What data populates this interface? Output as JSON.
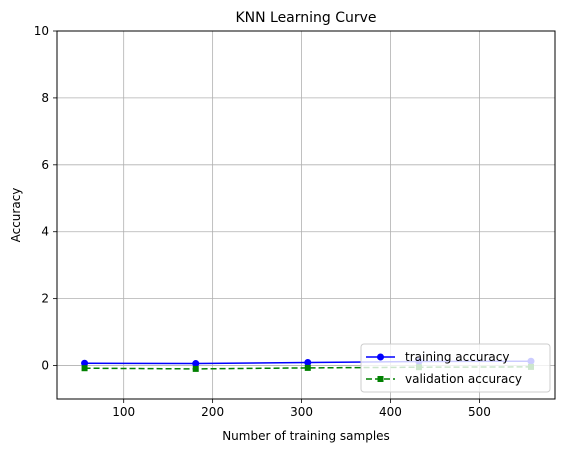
{
  "chart_data": {
    "type": "line",
    "title": "KNN Learning Curve",
    "xlabel": "Number of training samples",
    "ylabel": "Accuracy",
    "xlim": [
      25,
      585
    ],
    "ylim": [
      -1,
      10
    ],
    "xticks": [
      100,
      200,
      300,
      400,
      500
    ],
    "yticks": [
      0,
      2,
      4,
      6,
      8,
      10
    ],
    "grid": true,
    "legend_position": "lower-right",
    "x": [
      56,
      181,
      307,
      432,
      558
    ],
    "series": [
      {
        "name": "training accuracy",
        "values": [
          0.07,
          0.06,
          0.09,
          0.12,
          0.13
        ],
        "color": "#0000ff",
        "line_style": "solid",
        "marker": "circle"
      },
      {
        "name": "validation accuracy",
        "values": [
          -0.08,
          -0.1,
          -0.07,
          -0.05,
          -0.04
        ],
        "color": "#008000",
        "line_style": "dashed",
        "marker": "square"
      }
    ]
  }
}
